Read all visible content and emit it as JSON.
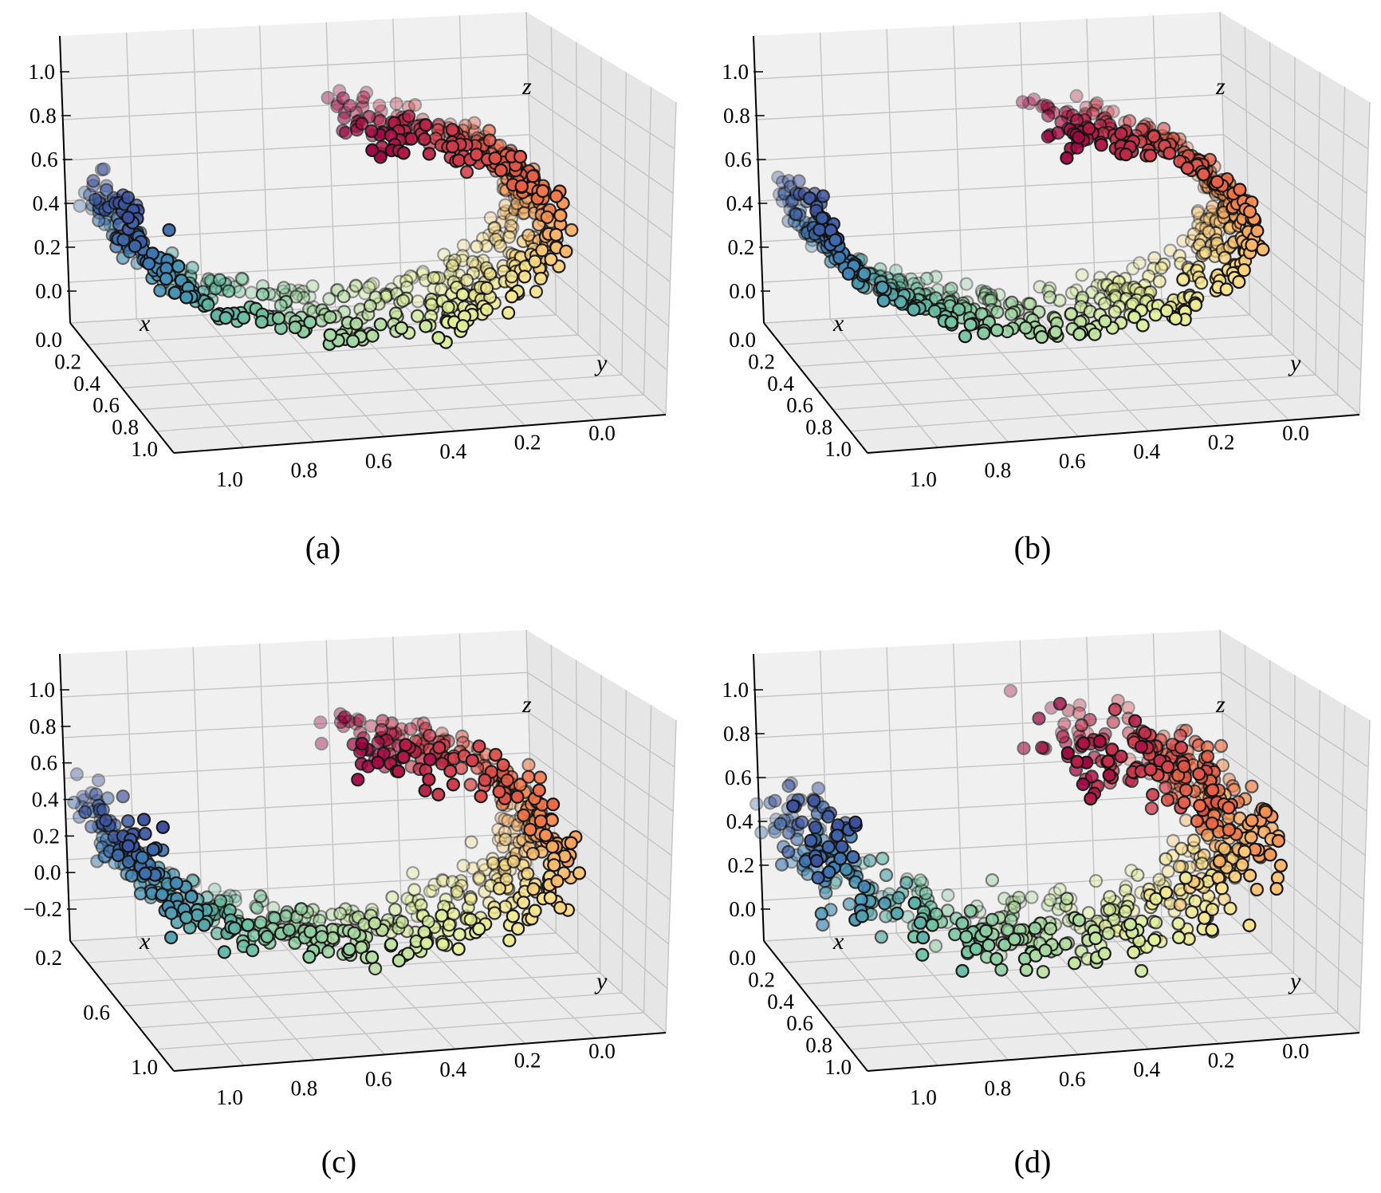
{
  "chart_data": [
    {
      "type": "scatter3d",
      "panel": "(a)",
      "axes": {
        "xlabel": "x",
        "ylabel": "y",
        "zlabel": "z",
        "z_ticks": [
          "0.0",
          "0.2",
          "0.4",
          "0.6",
          "0.8",
          "1.0"
        ],
        "x_ticks": [
          "0.0",
          "0.2",
          "0.4",
          "0.6",
          "0.8",
          "1.0"
        ],
        "y_ticks": [
          "1.0",
          "0.8",
          "0.6",
          "0.4",
          "0.2",
          "0.0"
        ]
      },
      "grid": true,
      "colormap": "Spectral_r",
      "points_approx": 700,
      "shape": "swiss-roll ring, points colored blue → green → yellow → orange → red along the roll"
    },
    {
      "type": "scatter3d",
      "panel": "(b)",
      "axes": {
        "xlabel": "x",
        "ylabel": "y",
        "zlabel": "z",
        "z_ticks": [
          "0.0",
          "0.2",
          "0.4",
          "0.6",
          "0.8",
          "1.0"
        ],
        "x_ticks": [
          "0.0",
          "0.2",
          "0.4",
          "0.6",
          "0.8",
          "1.0"
        ],
        "y_ticks": [
          "1.0",
          "0.8",
          "0.6",
          "0.4",
          "0.2",
          "0.0"
        ]
      },
      "grid": true,
      "colormap": "Spectral_r",
      "points_approx": 700,
      "shape": "clean swiss-roll spiral"
    },
    {
      "type": "scatter3d",
      "panel": "(c)",
      "axes": {
        "xlabel": "x",
        "ylabel": "y",
        "zlabel": "z",
        "z_ticks": [
          "−0.2",
          "0.0",
          "0.2",
          "0.4",
          "0.6",
          "0.8",
          "1.0"
        ],
        "x_ticks": [
          "0.2",
          "0.6",
          "1.0"
        ],
        "y_ticks": [
          "1.0",
          "0.8",
          "0.6",
          "0.4",
          "0.2",
          "0.0"
        ]
      },
      "grid": true,
      "colormap": "Spectral_r",
      "points_approx": 700,
      "shape": "swiss-roll ring with scattered points"
    },
    {
      "type": "scatter3d",
      "panel": "(d)",
      "axes": {
        "xlabel": "x",
        "ylabel": "y",
        "zlabel": "z",
        "z_ticks": [
          "0.0",
          "0.2",
          "0.4",
          "0.6",
          "0.8",
          "1.0"
        ],
        "x_ticks": [
          "0.0",
          "0.2",
          "0.4",
          "0.6",
          "0.8",
          "1.0"
        ],
        "y_ticks": [
          "1.0",
          "0.8",
          "0.6",
          "0.4",
          "0.2",
          "0.0"
        ]
      },
      "grid": true,
      "colormap": "Spectral_r",
      "points_approx": 700,
      "shape": "noisy filled swiss-roll"
    }
  ]
}
